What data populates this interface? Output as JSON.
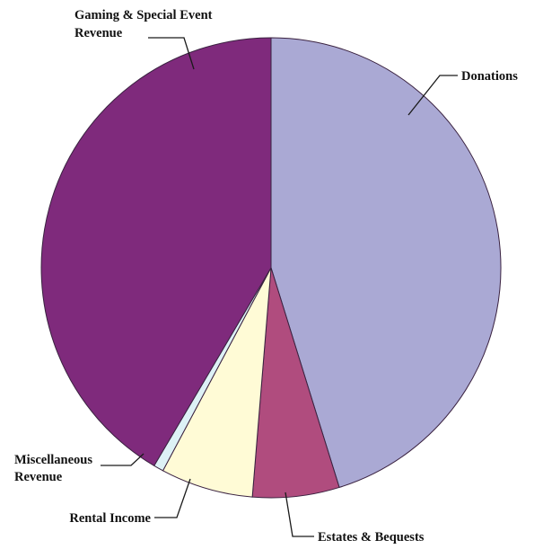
{
  "chart_data": {
    "type": "pie",
    "title": "",
    "slices": [
      {
        "label": "Donations",
        "lines": [
          "Donations"
        ],
        "value": 45.2,
        "color": "#aaa9d4"
      },
      {
        "label": "Estates & Bequests",
        "lines": [
          "Estates & Bequests"
        ],
        "value": 6.1,
        "color": "#b04c7e"
      },
      {
        "label": "Rental Income",
        "lines": [
          "Rental Income"
        ],
        "value": 6.5,
        "color": "#fffbd6"
      },
      {
        "label": "Miscellaneous Revenue",
        "lines": [
          "Miscellaneous",
          "Revenue"
        ],
        "value": 0.7,
        "color": "#ddf1f6"
      },
      {
        "label": "Gaming & Special Event Revenue",
        "lines": [
          "Gaming & Special Event",
          "Revenue"
        ],
        "value": 41.5,
        "color": "#7f2a7c"
      }
    ],
    "start": "top",
    "direction": "clockwise",
    "legend": "none; labels with leader lines"
  }
}
